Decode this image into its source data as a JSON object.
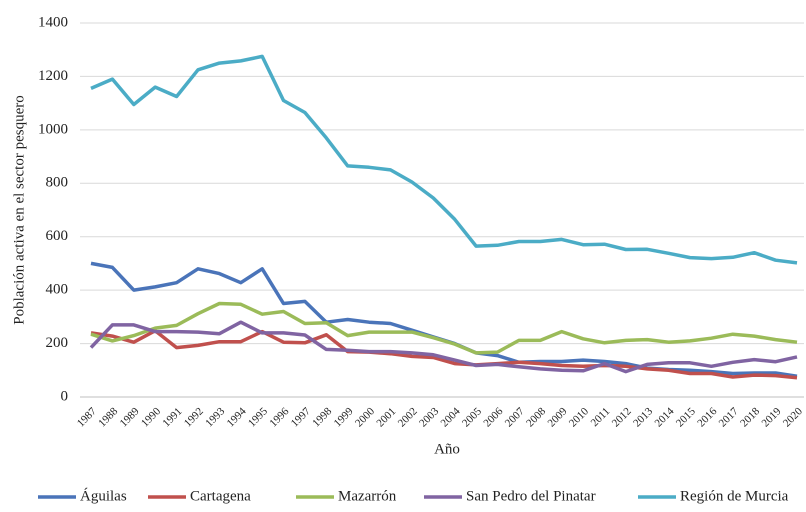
{
  "chart_data": {
    "type": "line",
    "x_label": "Año",
    "y_label": "Población activa en el sector pesquero",
    "categories": [
      "1987",
      "1988",
      "1989",
      "1990",
      "1991",
      "1992",
      "1993",
      "1994",
      "1995",
      "1996",
      "1997",
      "1998",
      "1999",
      "2000",
      "2001",
      "2002",
      "2003",
      "2004",
      "2005",
      "2006",
      "2007",
      "2008",
      "2009",
      "2010",
      "2011",
      "2012",
      "2013",
      "2014",
      "2015",
      "2016",
      "2017",
      "2018",
      "2019",
      "2020"
    ],
    "ylim": [
      0,
      1400
    ],
    "yticks": [
      0,
      200,
      400,
      600,
      800,
      1000,
      1200,
      1400
    ],
    "grid": true,
    "legend": "bottom",
    "series": [
      {
        "name": "Águilas",
        "color": "#4a74b9",
        "values": [
          500,
          485,
          400,
          412,
          428,
          480,
          462,
          428,
          480,
          350,
          358,
          280,
          290,
          280,
          275,
          250,
          225,
          200,
          165,
          155,
          130,
          133,
          133,
          138,
          133,
          125,
          108,
          103,
          100,
          95,
          88,
          90,
          90,
          78
        ]
      },
      {
        "name": "Cartagena",
        "color": "#c0504d",
        "values": [
          240,
          228,
          205,
          248,
          185,
          193,
          207,
          207,
          245,
          205,
          203,
          233,
          170,
          168,
          162,
          152,
          148,
          125,
          120,
          125,
          130,
          125,
          118,
          115,
          118,
          115,
          105,
          100,
          88,
          88,
          75,
          82,
          80,
          72
        ]
      },
      {
        "name": "Mazarrón",
        "color": "#9bbb59",
        "values": [
          235,
          210,
          230,
          258,
          268,
          312,
          350,
          347,
          310,
          320,
          275,
          278,
          230,
          243,
          243,
          243,
          222,
          198,
          165,
          168,
          212,
          212,
          245,
          218,
          203,
          212,
          215,
          205,
          210,
          220,
          235,
          228,
          215,
          205
        ]
      },
      {
        "name": "San Pedro del Pinatar",
        "color": "#8064a2",
        "values": [
          185,
          270,
          270,
          245,
          245,
          243,
          237,
          280,
          240,
          240,
          232,
          178,
          175,
          170,
          170,
          165,
          158,
          138,
          118,
          122,
          113,
          105,
          100,
          98,
          125,
          95,
          122,
          128,
          128,
          115,
          130,
          140,
          132,
          150
        ]
      },
      {
        "name": "Región de Murcia",
        "color": "#4bacc6",
        "values": [
          1155,
          1190,
          1095,
          1160,
          1125,
          1225,
          1250,
          1258,
          1275,
          1110,
          1065,
          970,
          865,
          860,
          850,
          805,
          745,
          665,
          565,
          568,
          582,
          582,
          590,
          570,
          572,
          552,
          553,
          538,
          522,
          518,
          523,
          540,
          512,
          502
        ]
      }
    ]
  }
}
